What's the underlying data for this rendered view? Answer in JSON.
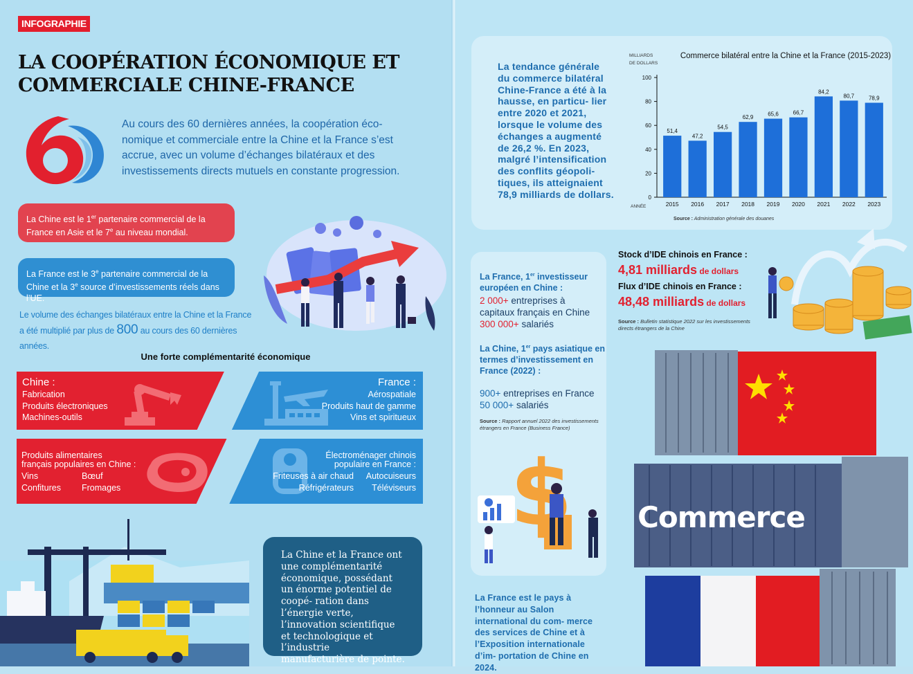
{
  "tag": "INFOGRAPHIE",
  "title_line1": "LA COOPÉRATION ÉCONOMIQUE ET",
  "title_line2": "COMMERCIALE CHINE-FRANCE",
  "intro": "Au cours des 60 dernières années, la coopération éco- nomique et commerciale entre la Chine et la France s’est accrue, avec un volume d’échanges bilatéraux et des investissements directs mutuels en constante progression.",
  "fact_red_1": "La Chine est le 1",
  "fact_red_sup1": "er",
  "fact_red_2": " partenaire commercial de la France en Asie et le 7",
  "fact_red_sup2": "e",
  "fact_red_3": " au niveau mondial.",
  "fact_blue_1": "La France est le 3",
  "fact_blue_sup1": "e",
  "fact_blue_2": " partenaire commercial de la Chine et la 3",
  "fact_blue_sup2": "e",
  "fact_blue_3": " source d’investissements réels dans l’UE.",
  "multiplied_1": "Le volume des échanges bilatéraux entre la Chine et la France",
  "multiplied_2": "a été multiplié par plus de ",
  "multiplied_num": "800",
  "multiplied_3": " au cours des 60 dernières années.",
  "complementarity_title": "Une forte complémentarité économique",
  "china_band": {
    "head": "Chine :",
    "items": [
      "Fabrication",
      "Produits électroniques",
      "Machines-outils"
    ]
  },
  "france_band": {
    "head": "France :",
    "items": [
      "Aérospatiale",
      "Produits haut de gamme",
      "Vins et spiritueux"
    ]
  },
  "china_food": {
    "head1": "Produits alimentaires",
    "head2": "français populaires en Chine :",
    "col1": [
      "Vins",
      "Confitures"
    ],
    "col2": [
      "Bœuf",
      "Fromages"
    ]
  },
  "france_appliances": {
    "head1": "Électroménager chinois",
    "head2": "populaire en France :",
    "col1": [
      "Friteuses à air chaud",
      "Réfrigérateurs"
    ],
    "col2": [
      "Autocuiseurs",
      "Téléviseurs"
    ]
  },
  "blue_box": "La Chine et la France ont une complémentarité économique, possédant un énorme potentiel de coopé- ration dans l’énergie verte, l’innovation scientifique et technologique et l’industrie manufacturière de pointe.",
  "chart_text": "La tendance générale du commerce bilatéral Chine-France a été à la hausse, en particu- lier entre 2020 et 2021, lorsque le volume des échanges a augmenté de 26,2 %. En 2023, malgré l’intensification des conflits géopoli- tiques, ils atteignaient 78,9 milliards de dollars.",
  "chart_data": {
    "type": "bar",
    "title": "Commerce bilatéral entre la Chine et la France (2015-2023)",
    "ylabel_1": "MILLIARDS",
    "ylabel_2": "DE DOLLARS",
    "xlabel": "ANNÉE",
    "categories": [
      "2015",
      "2016",
      "2017",
      "2018",
      "2019",
      "2020",
      "2021",
      "2022",
      "2023"
    ],
    "values": [
      51.4,
      47.2,
      54.5,
      62.9,
      65.6,
      66.7,
      84.2,
      80.7,
      78.9
    ],
    "value_labels": [
      "51,4",
      "47,2",
      "54,5",
      "62,9",
      "65,6",
      "66,7",
      "84,2",
      "80,7",
      "78,9"
    ],
    "yticks": [
      0,
      20,
      40,
      60,
      80,
      100
    ],
    "ylim": [
      0,
      100
    ],
    "source_label": "Source :",
    "source_text": " Administration générale des douanes",
    "bar_color": "#1e6fd9"
  },
  "invest": {
    "head1_a": "La France, 1",
    "head1_sup": "er",
    "head1_b": " investisseur",
    "head1_c": "européen en Chine :",
    "num1": "2 000+",
    "num1_text": " entreprises à",
    "num1_text2": "capitaux français en Chine",
    "num2": "300 000+",
    "num2_text": " salariés",
    "head2_a": "La Chine, 1",
    "head2_sup": "er",
    "head2_b": " pays asiatique en",
    "head2_c": "termes d’investissement en",
    "head2_d": "France (2022) :",
    "num3": "900+",
    "num3_text": " entreprises en France",
    "num4": "50 000+",
    "num4_text": " salariés",
    "src_label": "Source : ",
    "src_text": "Rapport annuel 2022 des investissements étrangers en France (Business France)"
  },
  "stock": {
    "label1": "Stock d’IDE chinois en France :",
    "value1": "4,81 milliards",
    "unit1": " de dollars",
    "label2": "Flux d’IDE chinois en France :",
    "value2": "48,48 milliards",
    "unit2": " de dollars",
    "src_label": "Source : ",
    "src_text": "Bulletin statistique 2022 sur les investissements directs étrangers de la Chine"
  },
  "container_label": "Commerce",
  "honneur": "La France est le pays à l’honneur au Salon international du com- merce des services de Chine et à l’Exposition internationale d’im- portation de Chine en 2024.",
  "colors": {
    "red": "#e22130",
    "blue": "#2d8fd5",
    "navy": "#1f5f86",
    "text_blue": "#1e6dae"
  }
}
